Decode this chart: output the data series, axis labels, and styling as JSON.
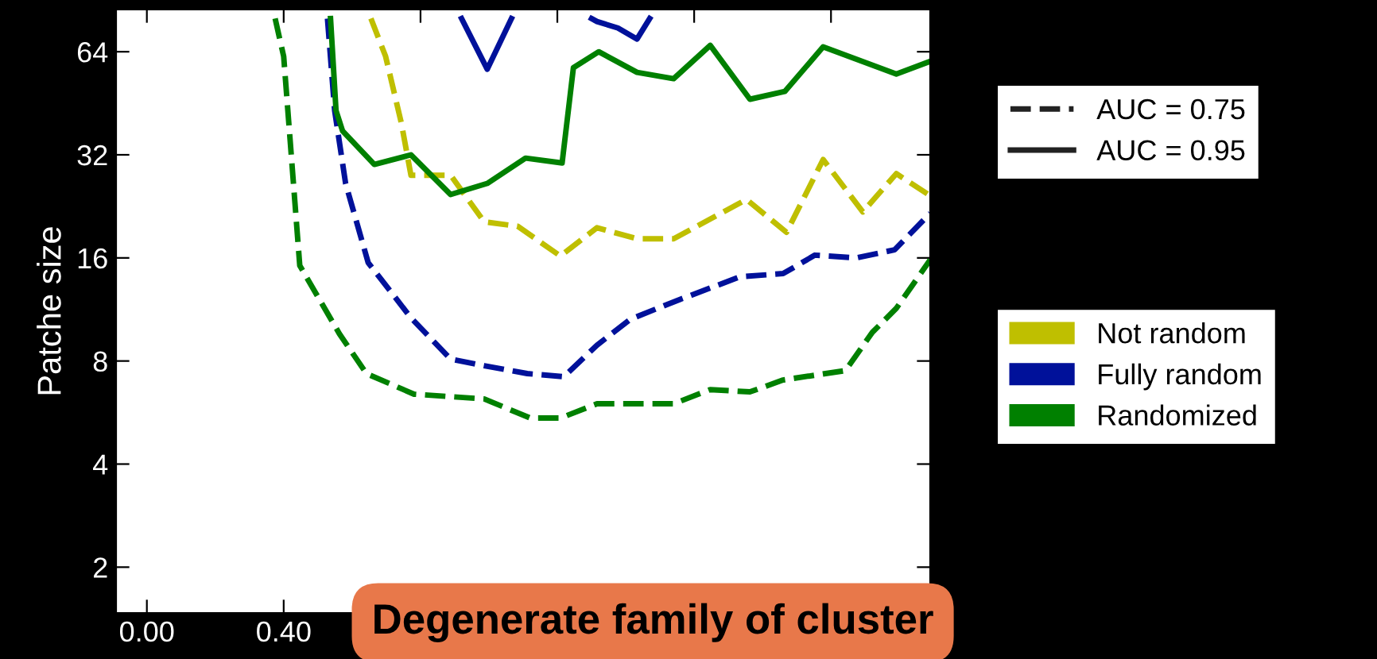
{
  "chart_data": {
    "type": "line",
    "ylabel": "Patche size",
    "log": "y",
    "xlim": [
      -0.09,
      2.29
    ],
    "ylim": [
      1.47,
      85
    ],
    "xticks": [
      {
        "value": 0,
        "label": "0.00"
      },
      {
        "value": 0.4,
        "label": "0.40"
      },
      {
        "value": 0.8,
        "label": null
      },
      {
        "value": 1.2,
        "label": null
      },
      {
        "value": 1.6,
        "label": null
      },
      {
        "value": 2.0,
        "label": null
      }
    ],
    "yticks": [
      2,
      4,
      8,
      16,
      32,
      64
    ],
    "grid": false,
    "legend": "right",
    "marker": "none",
    "series": [
      {
        "name": "AUC = 0.75",
        "color": "#222222",
        "line_style": "dashed"
      },
      {
        "name": "AUC = 0.95",
        "color": "#222222",
        "line_style": "solid"
      },
      {
        "name": "Not random",
        "color": "#bfbf00",
        "line_style": "dashed",
        "x": [
          0.655,
          0.698,
          0.744,
          0.772,
          0.888,
          0.986,
          1.084,
          1.209,
          1.316,
          1.433,
          1.54,
          1.753,
          1.87,
          1.977,
          2.093,
          2.191,
          2.29
        ],
        "values": [
          80,
          62,
          39.6,
          27.9,
          27.9,
          20.4,
          19.8,
          16.2,
          19.6,
          18.2,
          18.2,
          23.7,
          19.0,
          31.0,
          21.8,
          28.2,
          24.3
        ]
      },
      {
        "name": "Fully random",
        "color": "#00119a",
        "line_style": "dashed",
        "x": [
          0.528,
          0.549,
          0.581,
          0.647,
          0.772,
          0.888,
          0.986,
          1.112,
          1.219,
          1.316,
          1.414,
          1.558,
          1.735,
          1.86,
          1.953,
          2.074,
          2.186,
          2.29
        ],
        "values": [
          80,
          43.1,
          26.4,
          15.5,
          10.7,
          8.1,
          7.75,
          7.35,
          7.2,
          8.9,
          10.6,
          12.1,
          14.1,
          14.4,
          16.3,
          16,
          16.9,
          21.6
        ]
      },
      {
        "color": "#00119a",
        "line_style": "solid",
        "x": [
          0.92,
          0.995,
          1.066,
          1.2,
          1.3,
          1.316,
          1.377,
          1.433,
          1.47
        ],
        "values": [
          80,
          56.9,
          80,
          null,
          80,
          78.4,
          75.1,
          69.7,
          80
        ]
      },
      {
        "name": "Randomized",
        "color": "#008000",
        "line_style": "dashed",
        "x": [
          0.375,
          0.4,
          0.447,
          0.563,
          0.642,
          0.781,
          0.986,
          1.121,
          1.209,
          1.316,
          1.54,
          1.647,
          1.763,
          1.86,
          2.042,
          2.121,
          2.191,
          2.29
        ],
        "values": [
          80,
          62,
          15.2,
          9.6,
          7.35,
          6.4,
          6.2,
          5.45,
          5.45,
          6.0,
          6.0,
          6.6,
          6.5,
          7.04,
          7.5,
          9.7,
          11.4,
          15.8
        ]
      },
      {
        "color": "#008000",
        "line_style": "solid",
        "x": [
          0.537,
          0.553,
          0.572,
          0.665,
          0.772,
          0.888,
          0.995,
          1.107,
          1.214,
          1.247,
          1.321,
          1.433,
          1.54,
          1.647,
          1.763,
          1.865,
          1.977,
          2.191,
          2.29
        ],
        "values": [
          80,
          43.1,
          37.6,
          30.0,
          32,
          24.5,
          26.4,
          31.3,
          30.3,
          57.5,
          64,
          55.7,
          53.4,
          66.8,
          46.5,
          49.0,
          66.1,
          55.1,
          60.0
        ]
      }
    ],
    "annotations": [
      "Degenerate family of cluster"
    ]
  }
}
